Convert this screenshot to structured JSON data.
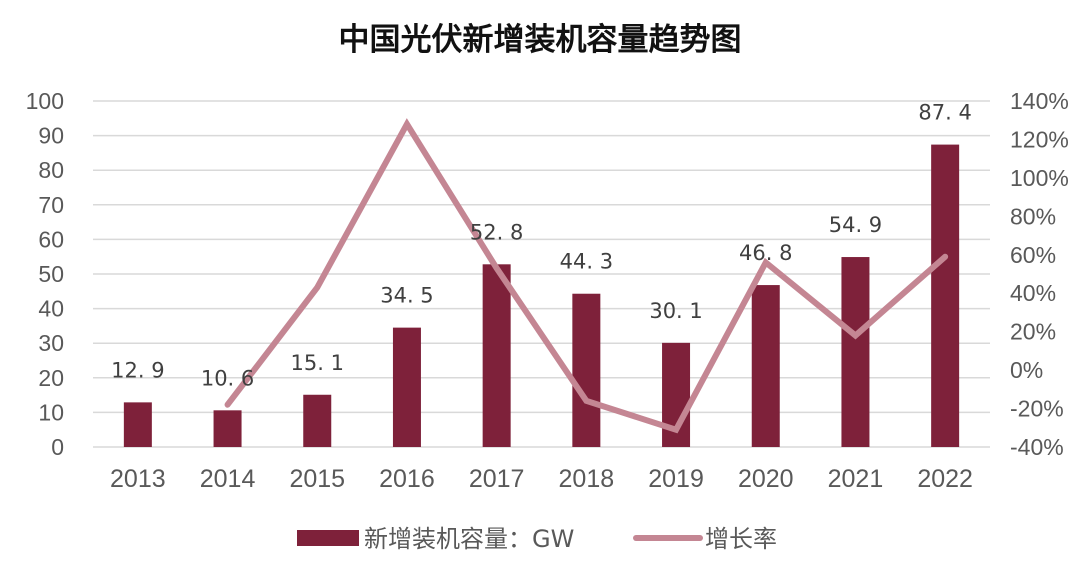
{
  "chart_data": {
    "type": "bar",
    "title": "中国光伏新增装机容量趋势图",
    "xlabel": "",
    "ylabel": "",
    "categories": [
      "2013",
      "2014",
      "2015",
      "2016",
      "2017",
      "2018",
      "2019",
      "2020",
      "2021",
      "2022"
    ],
    "series": [
      {
        "name": "新增装机容量：GW",
        "type": "bar",
        "axis": "left",
        "color": "#7E213A",
        "values": [
          12.9,
          10.6,
          15.1,
          34.5,
          52.8,
          44.3,
          30.1,
          46.8,
          54.9,
          87.4
        ],
        "labels": [
          "12.9",
          "10.6",
          "15.1",
          "34.5",
          "52.8",
          "44.3",
          "30.1",
          "46.8",
          "54.9",
          "87.4"
        ]
      },
      {
        "name": "增长率",
        "type": "line",
        "axis": "right",
        "color": "#C48693",
        "values": [
          null,
          -18,
          43,
          128,
          53,
          -16,
          -31,
          56,
          18,
          59
        ]
      }
    ],
    "ylim": [
      0,
      100
    ],
    "yticks": [
      "0",
      "10",
      "20",
      "30",
      "40",
      "50",
      "60",
      "70",
      "80",
      "90",
      "100"
    ],
    "y2lim": [
      -40,
      140
    ],
    "y2ticks": [
      "-40%",
      "-20%",
      "0%",
      "20%",
      "40%",
      "60%",
      "80%",
      "100%",
      "120%",
      "140%"
    ],
    "grid": true,
    "legend_position": "bottom"
  }
}
